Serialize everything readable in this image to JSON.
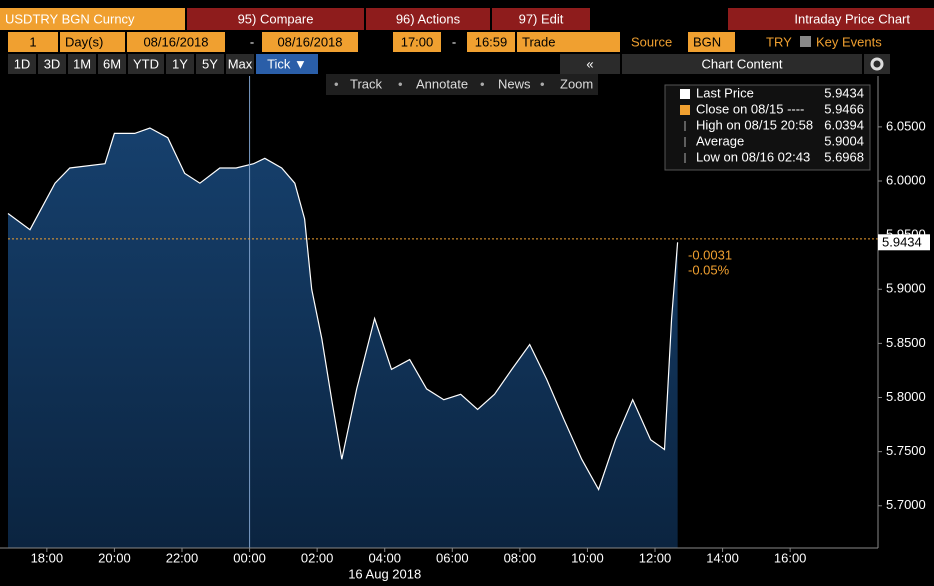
{
  "toolbar": {
    "security": "USDTRY BGN Curncy",
    "buttons": [
      "95) Compare",
      "96) Actions",
      "97) Edit"
    ],
    "title": "Intraday Price Chart"
  },
  "settings": {
    "period": "1",
    "period_unit": "Day(s)",
    "start_date": "08/16/2018",
    "date_separator": "-",
    "end_date": "08/16/2018",
    "start_time": "17:00",
    "time_separator": "-",
    "end_time": "16:59",
    "field": "Trade",
    "source_label": "Source",
    "source": "BGN",
    "currency": "TRY",
    "key_events": "Key Events"
  },
  "ranges": [
    "1D",
    "3D",
    "1M",
    "6M",
    "YTD",
    "1Y",
    "5Y",
    "Max",
    "Tick ▼"
  ],
  "collapse": "«",
  "chart_content": "Chart Content",
  "tools": [
    "Track",
    "Annotate",
    "News",
    "Zoom"
  ],
  "chart_data": {
    "type": "area",
    "x": [
      -0.15,
      0.5,
      1.24,
      1.68,
      2.72,
      3.0,
      3.6,
      4.05,
      4.58,
      5.08,
      5.53,
      6.12,
      6.6,
      7.12,
      7.45,
      7.95,
      8.34,
      8.63,
      8.84,
      9.14,
      9.43,
      9.73,
      10.17,
      10.7,
      11.2,
      11.74,
      12.24,
      12.75,
      13.25,
      13.75,
      14.25,
      14.76,
      15.29,
      15.79,
      16.3,
      16.83,
      17.33,
      17.83,
      18.34,
      18.87,
      19.28,
      19.49,
      19.67
    ],
    "series": [
      {
        "name": "Last Price",
        "color": "#ffffff",
        "values": [
          5.97,
          5.955,
          5.998,
          6.012,
          6.016,
          6.044,
          6.044,
          6.049,
          6.04,
          6.007,
          5.998,
          6.012,
          6.012,
          6.016,
          6.021,
          6.012,
          5.998,
          5.965,
          5.9,
          5.854,
          5.798,
          5.743,
          5.808,
          5.873,
          5.826,
          5.835,
          5.808,
          5.798,
          5.803,
          5.789,
          5.803,
          5.826,
          5.849,
          5.817,
          5.78,
          5.743,
          5.715,
          5.761,
          5.798,
          5.761,
          5.752,
          5.873,
          5.9434
        ]
      }
    ],
    "xlim": [
      -0.15,
      25.6
    ],
    "xticks": [
      {
        "value": 1,
        "label": "18:00"
      },
      {
        "value": 3,
        "label": "20:00"
      },
      {
        "value": 5,
        "label": "22:00"
      },
      {
        "value": 7,
        "label": "00:00"
      },
      {
        "value": 9,
        "label": "02:00"
      },
      {
        "value": 11,
        "label": "04:00"
      },
      {
        "value": 13,
        "label": "06:00"
      },
      {
        "value": 15,
        "label": "08:00"
      },
      {
        "value": 17,
        "label": "10:00"
      },
      {
        "value": 19,
        "label": "12:00"
      },
      {
        "value": 21,
        "label": "14:00"
      },
      {
        "value": 23,
        "label": "16:00"
      }
    ],
    "ylim": [
      5.661,
      6.097
    ],
    "yticks": [
      {
        "value": 5.7,
        "label": "5.7000"
      },
      {
        "value": 5.75,
        "label": "5.7500"
      },
      {
        "value": 5.8,
        "label": "5.8000"
      },
      {
        "value": 5.85,
        "label": "5.8500"
      },
      {
        "value": 5.9,
        "label": "5.9000"
      },
      {
        "value": 5.95,
        "label": "5.9500"
      },
      {
        "value": 6.0,
        "label": "6.0000"
      },
      {
        "value": 6.05,
        "label": "6.0500"
      }
    ],
    "date_label": "16 Aug 2018",
    "change_labels": [
      "-0.0031",
      "-0.05%"
    ],
    "legend": [
      {
        "label": "Last Price",
        "value": 5.9434
      },
      {
        "label": "Close on 08/15 ----",
        "value": 5.9466
      },
      {
        "label": "High on 08/15 20:58",
        "value": 6.0394
      },
      {
        "label": "Average",
        "value": 5.9004
      },
      {
        "label": "Low on 08/16 02:43",
        "value": 5.6968
      }
    ],
    "grid": false
  }
}
